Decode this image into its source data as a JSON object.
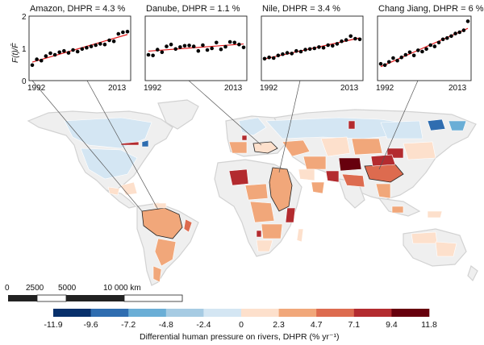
{
  "insets": [
    {
      "title": "Amazon, DHPR = 4.3 %",
      "x_start": "1992",
      "x_end": "2013",
      "values": [
        0.48,
        0.66,
        0.62,
        0.76,
        0.85,
        0.8,
        0.88,
        0.92,
        0.86,
        0.95,
        0.9,
        0.98,
        1.02,
        1.06,
        1.1,
        1.14,
        1.12,
        1.25,
        1.22,
        1.45,
        1.5,
        1.52
      ]
    },
    {
      "title": "Danube, DHPR = 1.1 %",
      "x_start": "1992",
      "x_end": "2013",
      "values": [
        0.8,
        0.78,
        0.96,
        0.88,
        1.06,
        1.12,
        0.98,
        1.04,
        1.08,
        1.09,
        1.06,
        0.92,
        1.1,
        0.95,
        1.0,
        1.18,
        0.97,
        1.05,
        1.2,
        1.18,
        1.12,
        1.03
      ]
    },
    {
      "title": "Nile, DHPR = 3.4 %",
      "x_start": "1992",
      "x_end": "2013",
      "values": [
        0.68,
        0.72,
        0.7,
        0.78,
        0.82,
        0.86,
        0.84,
        0.92,
        0.9,
        0.96,
        0.98,
        1.0,
        1.04,
        1.02,
        1.1,
        1.08,
        1.14,
        1.22,
        1.26,
        1.38,
        1.3,
        1.28
      ]
    },
    {
      "title": "Chang Jiang, DHPR = 6 %",
      "x_start": "1992",
      "x_end": "2013",
      "values": [
        0.52,
        0.48,
        0.58,
        0.7,
        0.62,
        0.72,
        0.8,
        0.88,
        0.78,
        0.94,
        0.9,
        0.98,
        1.1,
        1.06,
        1.18,
        1.28,
        1.32,
        1.38,
        1.46,
        1.5,
        1.56,
        1.84
      ]
    }
  ],
  "inset_ylabel": "F(t)/F̄",
  "inset_yticks": [
    "2",
    "1",
    "0"
  ],
  "scale_labels": [
    "0",
    "2500",
    "5000",
    "10 000 km"
  ],
  "colorbar": {
    "ticks": [
      "-11.9",
      "-9.6",
      "-7.2",
      "-4.8",
      "-2.4",
      "0",
      "2.3",
      "4.7",
      "7.1",
      "9.4",
      "11.8"
    ],
    "colors": [
      "#08306b",
      "#2f6db0",
      "#6aaed6",
      "#a6cbe3",
      "#d4e6f3",
      "#fde0cc",
      "#f1a77a",
      "#dd6b4f",
      "#b32b2f",
      "#67000d"
    ],
    "label": "Differential human pressure on rivers, DHPR (% yr⁻¹)"
  },
  "colors": {
    "fit_line": "#e41a1c",
    "dots": "#000000",
    "land": "#efefef",
    "coast": "#d2d2d2"
  }
}
